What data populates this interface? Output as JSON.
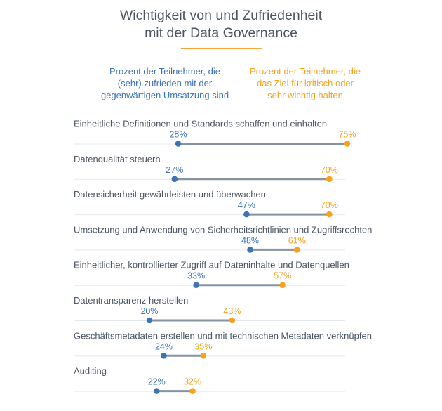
{
  "chart_data": {
    "type": "dumbbell",
    "title": "Wichtigkeit von und Zufriedenheit mit der Data Governance",
    "title_lines": [
      "Wichtigkeit von und Zufriedenheit",
      "mit der Data Governance"
    ],
    "xlim": [
      0,
      100
    ],
    "unit": "%",
    "series": [
      {
        "name": "Prozent der Teilnehmer, die (sehr) zufrieden mit der gegenwärtigen Umsatzung sind",
        "legend_lines": [
          "Prozent der Teilnehmer, die",
          "(sehr) zufrieden mit der",
          "gegenwärtigen Umsatzung sind"
        ],
        "color": "#3d74b3",
        "values": [
          28,
          27,
          47,
          48,
          33,
          20,
          24,
          22
        ]
      },
      {
        "name": "Prozent der Teilnehmer, die das Ziel für kritisch oder sehr wichtig halten",
        "legend_lines": [
          "Prozent der Teilnehmer, die",
          "das Ziel für kritisch oder",
          "sehr wichtig halten"
        ],
        "color": "#f7a21b",
        "values": [
          75,
          70,
          70,
          61,
          57,
          43,
          35,
          32
        ]
      }
    ],
    "categories": [
      "Einheitliche Definitionen und Standards schaffen und einhalten",
      "Datenqualität steuern",
      "Datensicherheit gewährleisten und überwachen",
      "Umsetzung und Anwendung von Sicherheitsrichtlinien und Zugriffsrechten",
      "Einheitlicher, kontrollierter Zugriff auf Dateninhalte und Datenquellen",
      "Datentransparenz herstellen",
      "Geschäftsmetadaten erstellen und mit technischen Metadaten verknüpfen",
      "Auditing"
    ],
    "connector_color": "#8593a3",
    "title_rule_color": "#f7a73a"
  }
}
